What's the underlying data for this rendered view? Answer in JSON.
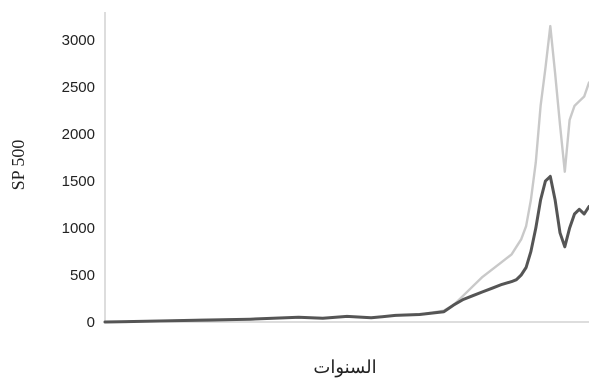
{
  "chart_data": {
    "type": "line",
    "title": "",
    "xlabel": "السنوات",
    "ylabel": "SP 500",
    "ylim": [
      0,
      3300
    ],
    "yticks": [
      0,
      500,
      1000,
      1500,
      2000,
      2500,
      3000
    ],
    "grid": false,
    "legend": "none",
    "x": [
      0,
      10,
      20,
      30,
      40,
      45,
      50,
      55,
      60,
      65,
      70,
      72,
      74,
      76,
      78,
      80,
      82,
      84,
      85,
      86,
      87,
      88,
      89,
      90,
      91,
      92,
      93,
      94,
      95,
      96,
      97,
      98,
      99,
      100
    ],
    "series": [
      {
        "color": "#c9c9c9",
        "values": [
          0,
          10,
          20,
          30,
          50,
          40,
          60,
          45,
          70,
          80,
          120,
          180,
          280,
          380,
          480,
          560,
          640,
          720,
          800,
          880,
          1020,
          1300,
          1700,
          2300,
          2700,
          3150,
          2650,
          2100,
          1600,
          2150,
          2300,
          2350,
          2400,
          2550
        ]
      },
      {
        "color": "#555555",
        "values": [
          0,
          10,
          20,
          30,
          50,
          40,
          60,
          45,
          70,
          80,
          110,
          180,
          240,
          280,
          320,
          360,
          400,
          430,
          450,
          500,
          580,
          750,
          1000,
          1300,
          1500,
          1550,
          1300,
          950,
          800,
          1000,
          1150,
          1200,
          1150,
          1230
        ]
      }
    ]
  }
}
